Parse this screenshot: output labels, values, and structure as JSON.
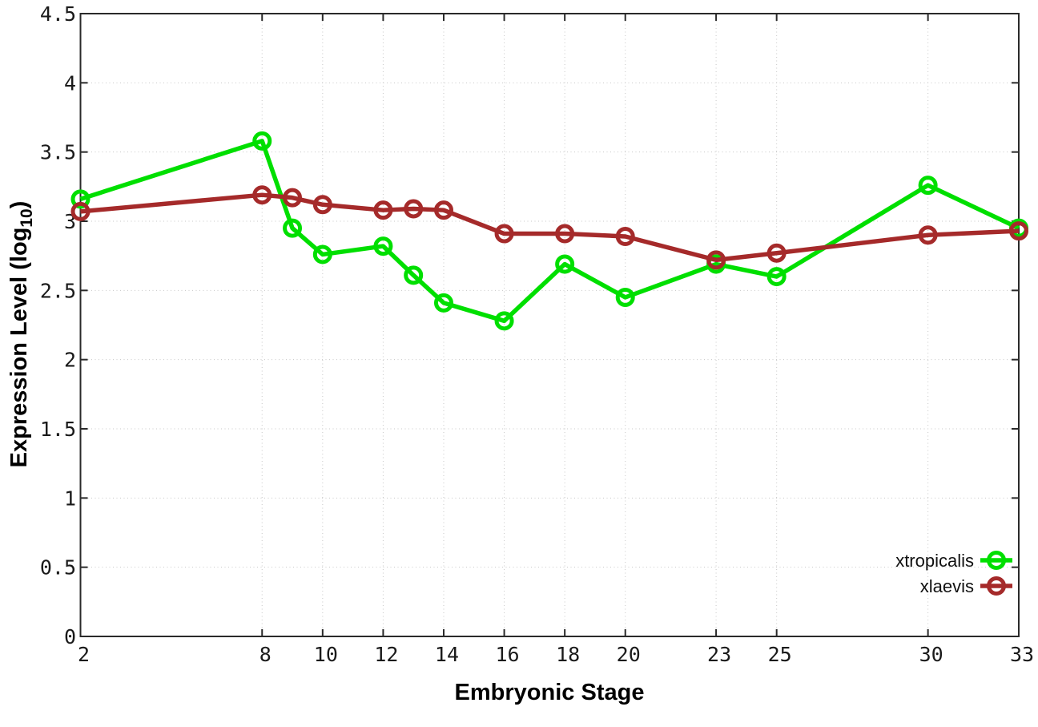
{
  "chart_data": {
    "type": "line",
    "title": "",
    "xlabel": "Embryonic Stage",
    "ylabel": "Expression Level (log10)",
    "ylabel_parts": {
      "pre": "Expression Level (log",
      "sub": "10",
      "post": ")"
    },
    "xlim": [
      2,
      33
    ],
    "ylim": [
      0,
      4.5
    ],
    "x_ticks": [
      2,
      8,
      10,
      12,
      14,
      16,
      18,
      20,
      23,
      25,
      30,
      33
    ],
    "y_ticks": [
      0,
      0.5,
      1,
      1.5,
      2,
      2.5,
      3,
      3.5,
      4,
      4.5
    ],
    "grid": true,
    "marker": "open-circle",
    "legend_position": "inside-bottom-right",
    "categories": [
      2,
      8,
      9,
      10,
      12,
      13,
      14,
      16,
      18,
      20,
      23,
      25,
      30,
      33
    ],
    "series": [
      {
        "name": "xtropicalis",
        "color": "#00DF00",
        "values": [
          3.16,
          3.58,
          2.95,
          2.76,
          2.82,
          2.61,
          2.41,
          2.28,
          2.69,
          2.45,
          2.69,
          2.6,
          3.26,
          2.95
        ]
      },
      {
        "name": "xlaevis",
        "color": "#A52A2A",
        "values": [
          3.07,
          3.19,
          3.17,
          3.12,
          3.08,
          3.09,
          3.08,
          2.91,
          2.91,
          2.89,
          2.72,
          2.77,
          2.9,
          2.93
        ]
      }
    ],
    "axis_color": "#2a2a2a",
    "grid_color": "#c8c8c8",
    "text_color": "#1a1a1a"
  }
}
